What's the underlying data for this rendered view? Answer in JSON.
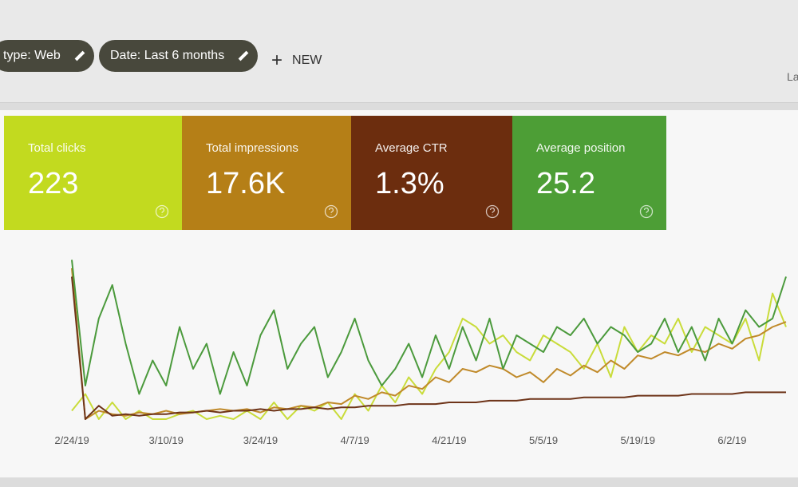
{
  "toolbar": {
    "chips": [
      "type: Web",
      "Date: Last 6 months"
    ],
    "new": "NEW",
    "truncated": "La"
  },
  "cards": [
    {
      "label": "Total clicks",
      "value": "223",
      "color": "#c2da1f"
    },
    {
      "label": "Total impressions",
      "value": "17.6K",
      "color": "#b57f17"
    },
    {
      "label": "Average CTR",
      "value": "1.3%",
      "color": "#6c2d0e"
    },
    {
      "label": "Average position",
      "value": "25.2",
      "color": "#4d9e36"
    }
  ],
  "chart_data": {
    "type": "line",
    "categories": [
      "2/24/19",
      null,
      null,
      null,
      null,
      null,
      null,
      "3/10/19",
      null,
      null,
      null,
      null,
      null,
      null,
      "3/24/19",
      null,
      null,
      null,
      null,
      null,
      null,
      "4/7/19",
      null,
      null,
      null,
      null,
      null,
      null,
      "4/21/19",
      null,
      null,
      null,
      null,
      null,
      null,
      "5/5/19",
      null,
      null,
      null,
      null,
      null,
      null,
      "5/19/19",
      null,
      null,
      null,
      null,
      null,
      null,
      "6/2/19",
      null,
      null,
      null,
      null
    ],
    "ylim": [
      0,
      100
    ],
    "series": [
      {
        "color": "#c9dc3a",
        "values": [
          5,
          15,
          0,
          10,
          0,
          5,
          0,
          0,
          3,
          5,
          0,
          2,
          0,
          5,
          0,
          10,
          0,
          8,
          5,
          10,
          0,
          15,
          5,
          20,
          10,
          25,
          15,
          30,
          40,
          60,
          55,
          45,
          50,
          40,
          35,
          50,
          45,
          40,
          30,
          45,
          25,
          55,
          40,
          50,
          45,
          60,
          40,
          55,
          50,
          45,
          60,
          35,
          75,
          55
        ]
      },
      {
        "color": "#c08a2a",
        "values": [
          90,
          0,
          5,
          3,
          2,
          4,
          3,
          5,
          3,
          4,
          5,
          6,
          5,
          6,
          4,
          7,
          6,
          8,
          7,
          10,
          9,
          14,
          12,
          16,
          14,
          20,
          18,
          25,
          22,
          30,
          28,
          32,
          30,
          25,
          28,
          22,
          30,
          26,
          32,
          28,
          35,
          30,
          38,
          36,
          40,
          38,
          42,
          40,
          45,
          42,
          48,
          50,
          55,
          58
        ]
      },
      {
        "color": "#6e3419",
        "values": [
          85,
          0,
          8,
          2,
          3,
          2,
          3,
          3,
          4,
          4,
          5,
          4,
          5,
          5,
          6,
          5,
          6,
          6,
          7,
          6,
          7,
          7,
          8,
          8,
          8,
          9,
          9,
          9,
          10,
          10,
          10,
          11,
          11,
          11,
          12,
          12,
          12,
          12,
          13,
          13,
          13,
          13,
          14,
          14,
          14,
          14,
          15,
          15,
          15,
          15,
          16,
          16,
          16,
          16
        ]
      },
      {
        "color": "#4b9a3c",
        "values": [
          95,
          20,
          60,
          80,
          45,
          15,
          35,
          20,
          55,
          30,
          45,
          15,
          40,
          20,
          50,
          65,
          30,
          45,
          55,
          25,
          40,
          60,
          35,
          20,
          30,
          45,
          25,
          50,
          30,
          55,
          35,
          60,
          30,
          50,
          45,
          40,
          55,
          50,
          60,
          45,
          55,
          50,
          40,
          45,
          60,
          40,
          55,
          35,
          60,
          45,
          65,
          55,
          60,
          85
        ]
      }
    ]
  }
}
